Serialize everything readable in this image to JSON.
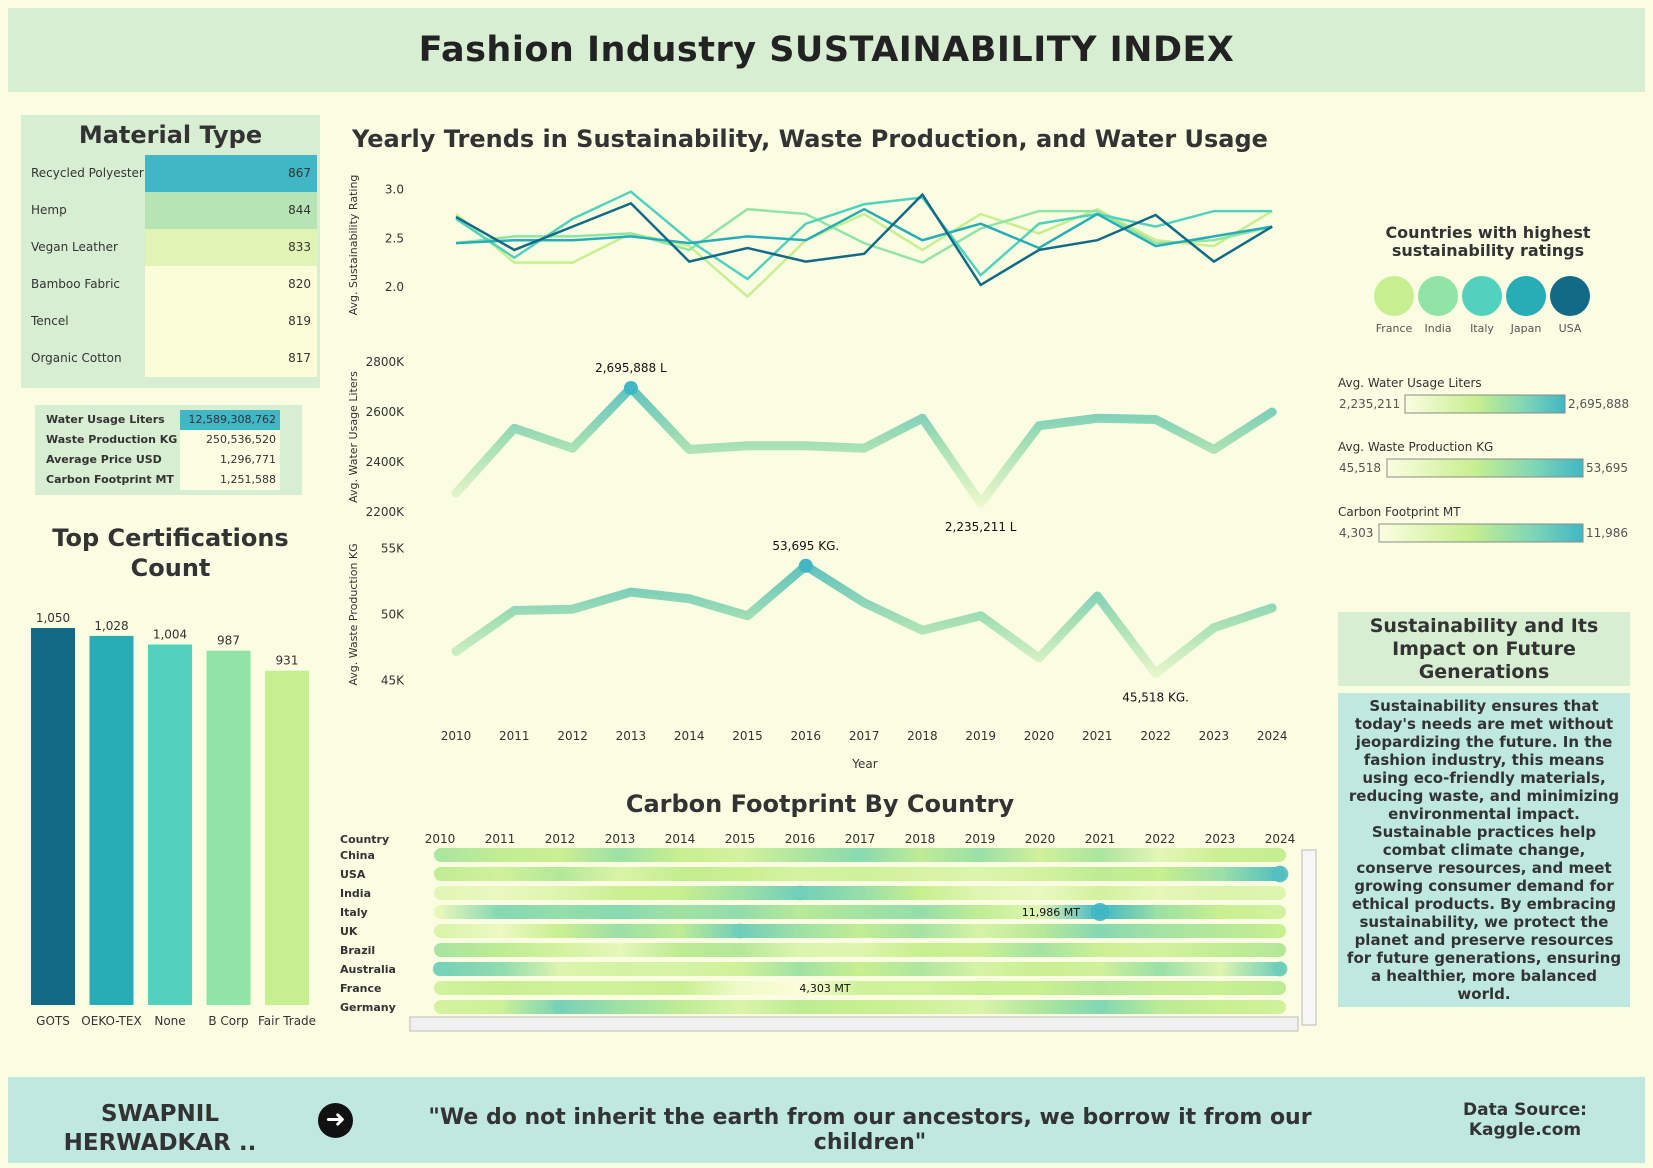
{
  "title": "Fashion Industry SUSTAINABILITY INDEX",
  "material": {
    "title": "Material Type",
    "items": [
      {
        "label": "Recycled Polyester",
        "value": "867",
        "color": "#41b6c4"
      },
      {
        "label": "Hemp",
        "value": "844",
        "color": "#b7e4b4"
      },
      {
        "label": "Vegan Leather",
        "value": "833",
        "color": "#e2f4b5"
      },
      {
        "label": "Bamboo Fabric",
        "value": "820",
        "color": "#fbfdd8"
      },
      {
        "label": "Tencel",
        "value": "819",
        "color": "#fbfdd8"
      },
      {
        "label": "Organic Cotton",
        "value": "817",
        "color": "#fbfdd8"
      }
    ]
  },
  "kpis": [
    {
      "label": "Water Usage Liters",
      "value": "12,589,308,762"
    },
    {
      "label": "Waste Production KG",
      "value": "250,536,520"
    },
    {
      "label": "Average Price USD",
      "value": "1,296,771"
    },
    {
      "label": "Carbon Footprint MT",
      "value": "1,251,588"
    }
  ],
  "certifications": {
    "title": "Top Certifications Count"
  },
  "trends_title": "Yearly Trends in Sustainability, Waste Production, and Water Usage",
  "carbon_title": "Carbon Footprint By Country",
  "legend": {
    "title": "Countries with highest sustainability ratings",
    "items": [
      {
        "label": "France",
        "color": "#c7ef8f"
      },
      {
        "label": "India",
        "color": "#92e3a6"
      },
      {
        "label": "Italy",
        "color": "#52d1be"
      },
      {
        "label": "Japan",
        "color": "#28adb7"
      },
      {
        "label": "USA",
        "color": "#136a86"
      }
    ]
  },
  "ranges": [
    {
      "title": "Avg. Water Usage Liters",
      "min": "2,235,211",
      "max": "2,695,888"
    },
    {
      "title": "Avg. Waste Production KG",
      "min": "45,518",
      "max": "53,695"
    },
    {
      "title": "Carbon Footprint MT",
      "min": "4,303",
      "max": "11,986"
    }
  ],
  "sustain": {
    "heading": "Sustainability and Its Impact on Future Generations",
    "body": "Sustainability ensures that today's needs are met without jeopardizing the future. In the fashion industry, this means using eco-friendly materials, reducing waste, and minimizing environmental impact. Sustainable practices help combat climate change, conserve resources, and meet growing consumer demand for ethical products. By embracing sustainability, we protect the planet and preserve resources for future generations, ensuring a healthier, more balanced world."
  },
  "footer": {
    "author": "SWAPNIL HERWADKAR ..",
    "quote": "\"We do not inherit the earth from our ancestors, we borrow it from our children\"",
    "source": "Data Source: Kaggle.com"
  },
  "chart_data": [
    {
      "type": "bar",
      "title": "Top Certifications Count",
      "categories": [
        "GOTS",
        "OEKO-TEX",
        "None",
        "B Corp",
        "Fair Trade"
      ],
      "values": [
        1050,
        1028,
        1004,
        987,
        931
      ],
      "value_labels": [
        "1,050",
        "1,028",
        "1,004",
        "987",
        "931"
      ],
      "colors": [
        "#136a86",
        "#28adb7",
        "#52d1be",
        "#92e3a6",
        "#c7ef8f"
      ]
    },
    {
      "type": "line",
      "x": [
        2010,
        2011,
        2012,
        2013,
        2014,
        2015,
        2016,
        2017,
        2018,
        2019,
        2020,
        2021,
        2022,
        2023,
        2024
      ],
      "xlabel": "Year",
      "ylabel": "Avg. Sustainability Rating",
      "ylim": [
        1.7,
        3.1
      ],
      "yticks": [
        "3.0",
        "2.5",
        "2.0"
      ],
      "series": [
        {
          "name": "France",
          "color": "#c7ef8f",
          "values": [
            2.75,
            2.25,
            2.25,
            2.55,
            2.42,
            1.9,
            2.48,
            2.75,
            2.38,
            2.75,
            2.55,
            2.8,
            2.48,
            2.42,
            2.78
          ]
        },
        {
          "name": "India",
          "color": "#92e3a6",
          "values": [
            2.45,
            2.52,
            2.52,
            2.55,
            2.38,
            2.8,
            2.75,
            2.45,
            2.25,
            2.6,
            2.78,
            2.78,
            2.45,
            2.48,
            2.62
          ]
        },
        {
          "name": "Italy",
          "color": "#52d1be",
          "values": [
            2.7,
            2.3,
            2.7,
            2.98,
            2.48,
            2.08,
            2.65,
            2.85,
            2.92,
            2.12,
            2.65,
            2.75,
            2.62,
            2.78,
            2.78
          ]
        },
        {
          "name": "Japan",
          "color": "#28adb7",
          "values": [
            2.45,
            2.48,
            2.48,
            2.52,
            2.45,
            2.52,
            2.48,
            2.8,
            2.48,
            2.65,
            2.4,
            2.75,
            2.42,
            2.52,
            2.62
          ]
        },
        {
          "name": "USA",
          "color": "#136a86",
          "values": [
            2.72,
            2.38,
            2.62,
            2.86,
            2.26,
            2.4,
            2.26,
            2.34,
            2.95,
            2.02,
            2.38,
            2.48,
            2.74,
            2.26,
            2.62
          ]
        }
      ]
    },
    {
      "type": "line",
      "x": [
        2010,
        2011,
        2012,
        2013,
        2014,
        2015,
        2016,
        2017,
        2018,
        2019,
        2020,
        2021,
        2022,
        2023,
        2024
      ],
      "ylabel": "Avg. Water Usage Liters",
      "ylim": [
        2200000,
        2800000
      ],
      "yticks": [
        "2800K",
        "2600K",
        "2400K",
        "2200K"
      ],
      "values": [
        2275000,
        2535000,
        2455000,
        2695888,
        2450000,
        2465000,
        2465000,
        2455000,
        2575000,
        2235211,
        2545000,
        2575000,
        2570000,
        2450000,
        2600000
      ],
      "annotations": [
        {
          "x": 2013,
          "text": "2,695,888 L"
        },
        {
          "x": 2019,
          "text": "2,235,211 L"
        }
      ]
    },
    {
      "type": "line",
      "x": [
        2010,
        2011,
        2012,
        2013,
        2014,
        2015,
        2016,
        2017,
        2018,
        2019,
        2020,
        2021,
        2022,
        2023,
        2024
      ],
      "ylabel": "Avg. Waste Production KG",
      "ylim": [
        44500,
        55500
      ],
      "yticks": [
        "55K",
        "50K",
        "45K"
      ],
      "values": [
        47200,
        50300,
        50400,
        51700,
        51200,
        49900,
        53695,
        50900,
        48800,
        49900,
        46700,
        51400,
        45518,
        49000,
        50500
      ],
      "annotations": [
        {
          "x": 2016,
          "text": "53,695 KG."
        },
        {
          "x": 2022,
          "text": "45,518 KG."
        }
      ]
    },
    {
      "type": "heatmap",
      "title": "Carbon Footprint By Country",
      "row_header": "Country",
      "x": [
        2010,
        2011,
        2012,
        2013,
        2014,
        2015,
        2016,
        2017,
        2018,
        2019,
        2020,
        2021,
        2022,
        2023,
        2024
      ],
      "rows": [
        "China",
        "USA",
        "India",
        "Italy",
        "UK",
        "Brazil",
        "Australia",
        "France",
        "Germany"
      ],
      "values": [
        [
          7900,
          7200,
          6900,
          8300,
          7000,
          6400,
          7800,
          9000,
          7300,
          8400,
          6600,
          7900,
          5600,
          6800,
          7100
        ],
        [
          7200,
          6600,
          7600,
          6100,
          7100,
          6900,
          6300,
          6600,
          6200,
          5900,
          6400,
          7300,
          7000,
          8400,
          11200
        ],
        [
          5600,
          5200,
          5900,
          6800,
          7000,
          8300,
          9900,
          8600,
          7000,
          5700,
          5200,
          6400,
          5400,
          6000,
          5800
        ],
        [
          5400,
          9100,
          8600,
          9000,
          8200,
          8700,
          7500,
          8100,
          8600,
          7200,
          5700,
          11986,
          8300,
          7000,
          6400
        ],
        [
          6000,
          5100,
          6900,
          8400,
          7300,
          10000,
          8300,
          7200,
          8100,
          6200,
          7500,
          9100,
          8100,
          7600,
          7000
        ],
        [
          8000,
          7300,
          6400,
          5400,
          7300,
          7600,
          5900,
          5800,
          7000,
          6800,
          8100,
          6800,
          6400,
          7200,
          7600
        ],
        [
          9700,
          8800,
          5900,
          6300,
          6200,
          6600,
          8200,
          7000,
          7800,
          6200,
          6900,
          6600,
          8400,
          5800,
          10000
        ],
        [
          6400,
          6900,
          6600,
          6600,
          6900,
          4900,
          4303,
          6600,
          6500,
          7000,
          6900,
          7600,
          7200,
          6900,
          7300
        ],
        [
          6400,
          6700,
          9600,
          8300,
          7300,
          6000,
          7300,
          7000,
          6600,
          6000,
          7800,
          9200,
          7400,
          6900,
          6600
        ]
      ],
      "annotations": [
        {
          "row": "Italy",
          "x": 2021,
          "text": "11,986 MT"
        },
        {
          "row": "France",
          "x": 2016,
          "text": "4,303 MT"
        }
      ],
      "vmin": 4303,
      "vmax": 11986
    }
  ]
}
